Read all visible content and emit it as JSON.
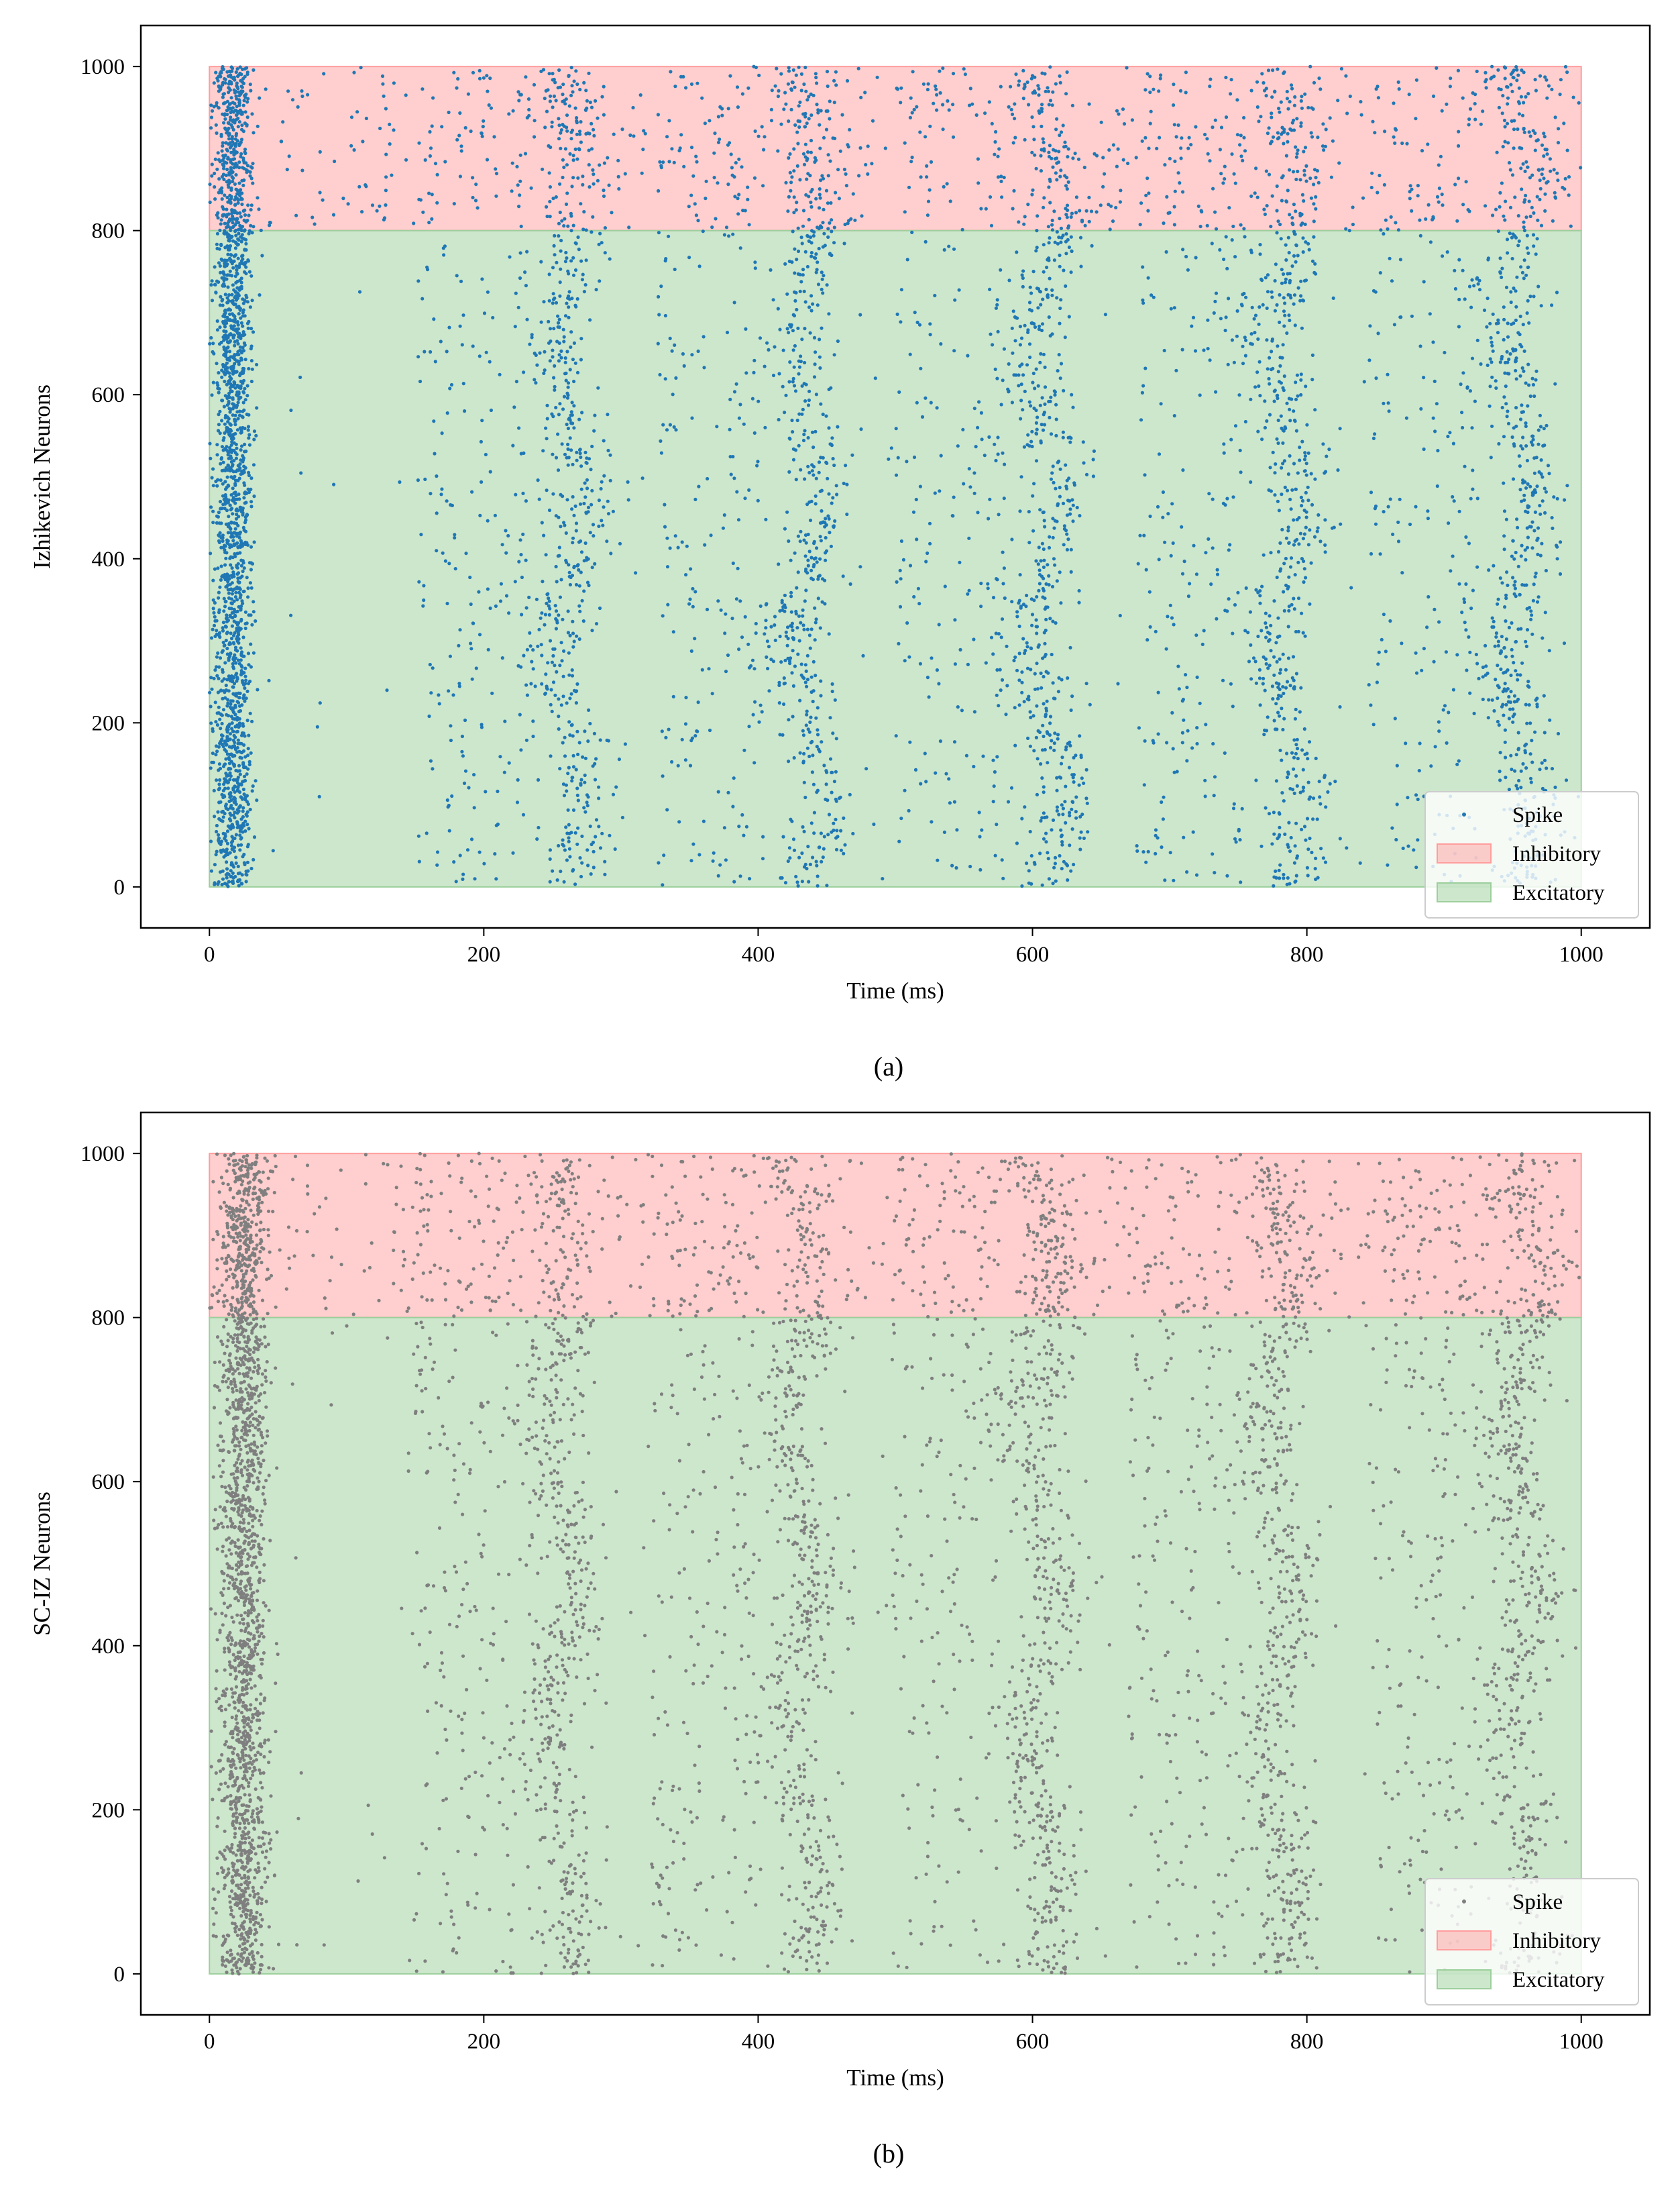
{
  "chart_data": [
    {
      "type": "scatter",
      "panel_label": "(a)",
      "xlabel": "Time (ms)",
      "ylabel": "Izhikevich Neurons",
      "xlim": [
        -50,
        1050
      ],
      "ylim": [
        -50,
        1050
      ],
      "xticks": [
        0,
        200,
        400,
        600,
        800,
        1000
      ],
      "yticks": [
        0,
        200,
        400,
        600,
        800,
        1000
      ],
      "regions": [
        {
          "name": "Inhibitory",
          "x": [
            0,
            1000
          ],
          "y": [
            800,
            1000
          ],
          "color": "#ff9d9d"
        },
        {
          "name": "Excitatory",
          "x": [
            0,
            1000
          ],
          "y": [
            0,
            800
          ],
          "color": "#9ccf9c"
        }
      ],
      "series": [
        {
          "name": "Spike",
          "color": "#1f77b4",
          "bursts": [
            {
              "t": 17,
              "width": 7,
              "n": 1900
            },
            {
              "t": 262,
              "width": 12,
              "n": 800
            },
            {
              "t": 437,
              "width": 12,
              "n": 800
            },
            {
              "t": 610,
              "width": 13,
              "n": 800
            },
            {
              "t": 785,
              "width": 12,
              "n": 800
            },
            {
              "t": 955,
              "width": 13,
              "n": 800
            }
          ],
          "background_rate_excitatory": 0.2,
          "background_rate_inhibitory": 0.5
        }
      ],
      "legend": {
        "location": "lower right",
        "entries": [
          "Spike",
          "Inhibitory",
          "Excitatory"
        ]
      }
    },
    {
      "type": "scatter",
      "panel_label": "(b)",
      "xlabel": "Time (ms)",
      "ylabel": "SC-IZ Neurons",
      "xlim": [
        -50,
        1050
      ],
      "ylim": [
        -50,
        1050
      ],
      "xticks": [
        0,
        200,
        400,
        600,
        800,
        1000
      ],
      "yticks": [
        0,
        200,
        400,
        600,
        800,
        1000
      ],
      "regions": [
        {
          "name": "Inhibitory",
          "x": [
            0,
            1000
          ],
          "y": [
            800,
            1000
          ],
          "color": "#ff9d9d"
        },
        {
          "name": "Excitatory",
          "x": [
            0,
            1000
          ],
          "y": [
            0,
            800
          ],
          "color": "#9ccf9c"
        }
      ],
      "series": [
        {
          "name": "Spike",
          "color": "#7f7f7f",
          "bursts": [
            {
              "t": 25,
              "width": 9,
              "n": 1900
            },
            {
              "t": 255,
              "width": 13,
              "n": 800
            },
            {
              "t": 432,
              "width": 12,
              "n": 800
            },
            {
              "t": 606,
              "width": 13,
              "n": 800
            },
            {
              "t": 780,
              "width": 12,
              "n": 800
            },
            {
              "t": 955,
              "width": 13,
              "n": 800
            }
          ],
          "background_rate_excitatory": 0.2,
          "background_rate_inhibitory": 0.5
        }
      ],
      "legend": {
        "location": "lower right",
        "entries": [
          "Spike",
          "Inhibitory",
          "Excitatory"
        ]
      }
    }
  ]
}
